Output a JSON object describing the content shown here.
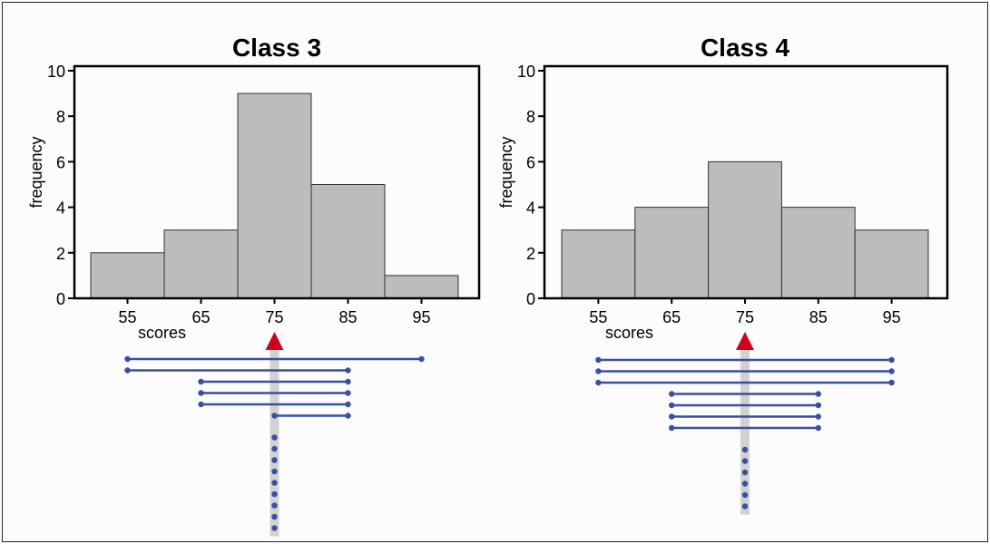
{
  "chart_data": [
    {
      "type": "bar",
      "title": "Class 3",
      "xlabel": "scores",
      "ylabel": "frequency",
      "categories": [
        "55",
        "65",
        "75",
        "85",
        "95"
      ],
      "values": [
        2,
        3,
        9,
        5,
        1
      ],
      "ylim": [
        0,
        10
      ],
      "yticks": [
        "0",
        "2",
        "4",
        "6",
        "8",
        "10"
      ],
      "grid": false,
      "mean_marker": 75,
      "spans": [
        {
          "start": 55,
          "end": 95
        },
        {
          "start": 55,
          "end": 85
        },
        {
          "start": 65,
          "end": 85
        },
        {
          "start": 65,
          "end": 85
        },
        {
          "start": 65,
          "end": 85
        },
        {
          "start": 75,
          "end": 85
        }
      ],
      "points_at_mean": 9
    },
    {
      "type": "bar",
      "title": "Class 4",
      "xlabel": "scores",
      "ylabel": "frequency",
      "categories": [
        "55",
        "65",
        "75",
        "85",
        "95"
      ],
      "values": [
        3,
        4,
        6,
        4,
        3
      ],
      "ylim": [
        0,
        10
      ],
      "yticks": [
        "0",
        "2",
        "4",
        "6",
        "8",
        "10"
      ],
      "grid": false,
      "mean_marker": 75,
      "spans": [
        {
          "start": 55,
          "end": 95
        },
        {
          "start": 55,
          "end": 95
        },
        {
          "start": 55,
          "end": 95
        },
        {
          "start": 65,
          "end": 85
        },
        {
          "start": 65,
          "end": 85
        },
        {
          "start": 65,
          "end": 85
        },
        {
          "start": 65,
          "end": 85
        }
      ],
      "points_at_mean": 6
    }
  ],
  "colors": {
    "bar_fill": "#bdbbbc",
    "bar_stroke": "#333333",
    "span_line": "#3a4fa0",
    "mean_bar": "#d2d2d2",
    "arrow": "#d0021b"
  }
}
